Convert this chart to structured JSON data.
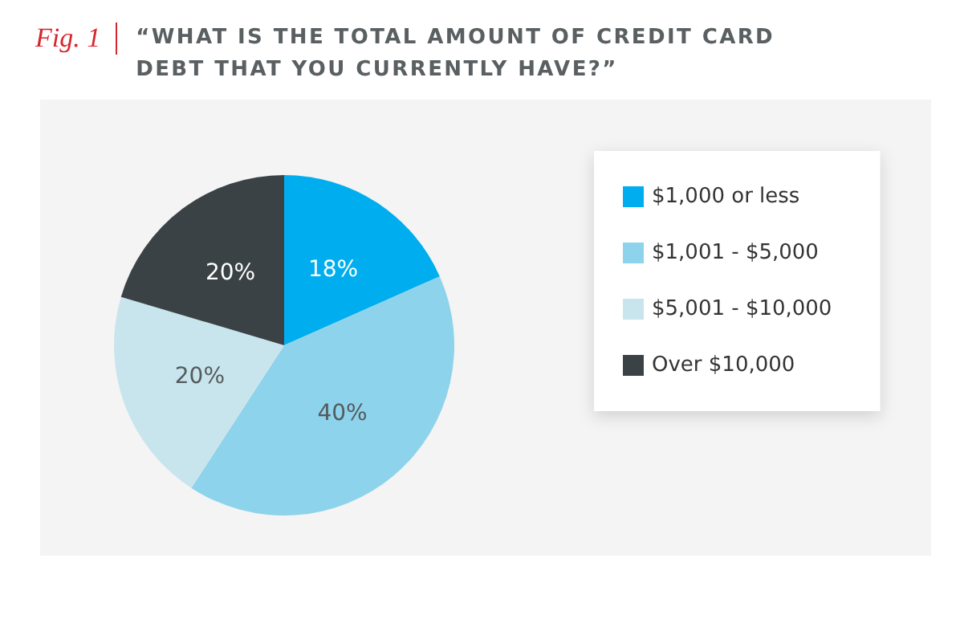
{
  "chart_data": {
    "type": "pie",
    "title": "“WHAT IS THE TOTAL AMOUNT OF CREDIT CARD DEBT THAT YOU CURRENTLY HAVE?”",
    "annotations": [
      "Fig. 1"
    ],
    "categories": [
      "$1,000 or less",
      "$1,001 - $5,000",
      "$5,001 - $10,000",
      "Over $10,000"
    ],
    "values": [
      18,
      40,
      20,
      20
    ],
    "colors": [
      "#00aeef",
      "#8ed3ec",
      "#c8e5ed",
      "#3a4246"
    ],
    "value_labels": [
      "18%",
      "40%",
      "20%",
      "20%"
    ],
    "legend": "right"
  }
}
